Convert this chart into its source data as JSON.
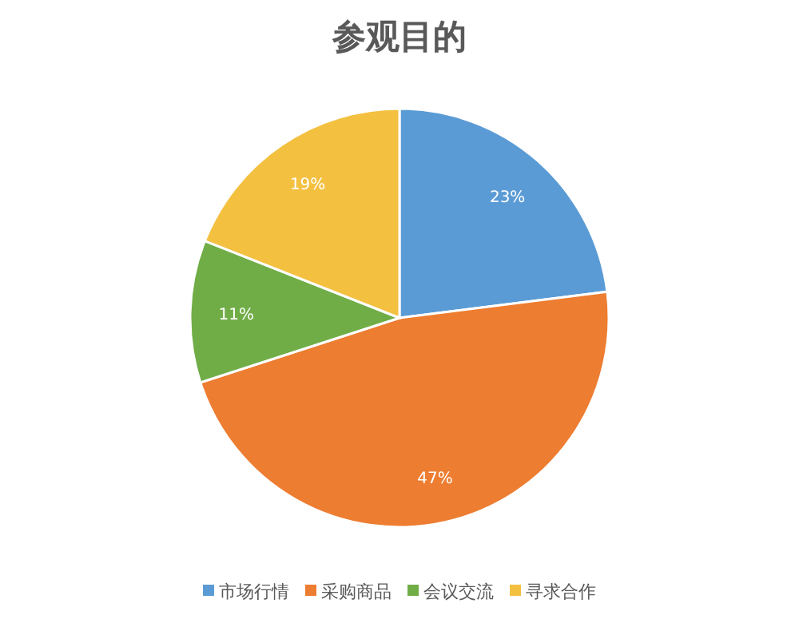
{
  "chart_data": {
    "type": "pie",
    "title": "参观目的",
    "categories": [
      "市场行情",
      "采购商品",
      "会议交流",
      "寻求合作"
    ],
    "values": [
      23,
      47,
      11,
      19
    ],
    "value_labels": [
      "23%",
      "47%",
      "11%",
      "19%"
    ],
    "colors": [
      "#5b9bd5",
      "#ed7d31",
      "#70ad47",
      "#f3c040"
    ],
    "legend": "bottom"
  }
}
